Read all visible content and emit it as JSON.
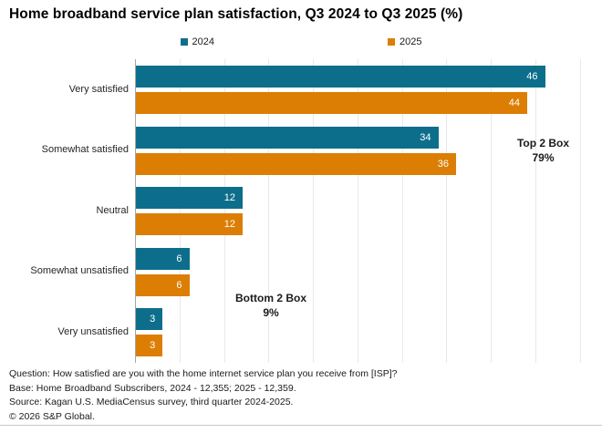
{
  "chart_data": {
    "type": "bar",
    "orientation": "horizontal",
    "title": "Home broadband service plan satisfaction, Q3 2024 to Q3 2025 (%)",
    "categories": [
      "Very satisfied",
      "Somewhat satisfied",
      "Neutral",
      "Somewhat unsatisfied",
      "Very unsatisfied"
    ],
    "series": [
      {
        "name": "2024",
        "color": "#0d6e8c",
        "values": [
          46,
          34,
          12,
          6,
          3
        ]
      },
      {
        "name": "2025",
        "color": "#dc7e04",
        "values": [
          44,
          36,
          12,
          6,
          3
        ]
      }
    ],
    "xlim": [
      0,
      50
    ],
    "gridline_step": 5,
    "grid": true,
    "legend_position": "top-center",
    "value_labels": "inside-end",
    "annotations": {
      "top2box": {
        "line1": "Top 2 Box",
        "line2": "79%"
      },
      "bottom2box": {
        "line1": "Bottom 2 Box",
        "line2": "9%"
      }
    }
  },
  "colors": {
    "series_2024": "#0d6e8c",
    "series_2025": "#dc7e04",
    "grid": "#e9e9e9",
    "axis": "#a6a6a6",
    "text": "#1a1a1a"
  },
  "footer": {
    "question": "Question: How satisfied are you with the home internet service plan you receive from [ISP]?",
    "base": "Base: Home Broadband Subscribers, 2024 - 12,355; 2025 - 12,359.",
    "source": "Source: Kagan U.S. MediaCensus survey, third quarter 2024-2025.",
    "copyright": "© 2026 S&P Global."
  }
}
